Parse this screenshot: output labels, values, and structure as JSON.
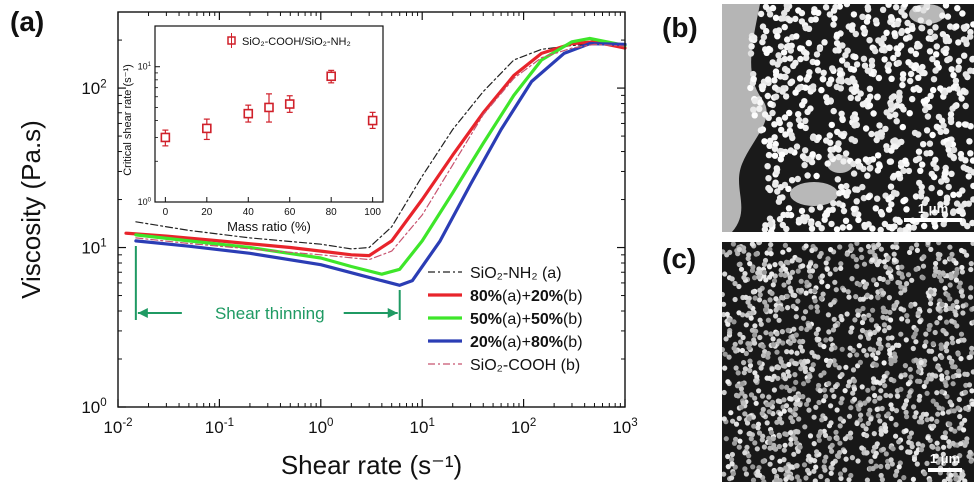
{
  "panels": {
    "a": "(a)",
    "b": "(b)",
    "c": "(c)"
  },
  "colors": {
    "nh2": "#222222",
    "s80": "#e8242b",
    "s50": "#3ee62a",
    "s20": "#2b3db5",
    "cooh": "#c8536f",
    "annotation": "#1f9a63",
    "inset_marker": "#d0202a"
  },
  "chart_data": [
    {
      "type": "line",
      "xlabel": "Shear rate (s⁻¹)",
      "ylabel": "Viscosity (Pa.s)",
      "xscale": "log",
      "yscale": "log",
      "xlim": [
        0.01,
        1000
      ],
      "ylim": [
        1,
        300
      ],
      "x_ticks": [
        0.01,
        0.1,
        1,
        10,
        100,
        1000
      ],
      "x_tick_labels": [
        {
          "base": "10",
          "exp": "-2"
        },
        {
          "base": "10",
          "exp": "-1"
        },
        {
          "base": "10",
          "exp": "0"
        },
        {
          "base": "10",
          "exp": "1"
        },
        {
          "base": "10",
          "exp": "2"
        },
        {
          "base": "10",
          "exp": "3"
        }
      ],
      "y_ticks": [
        1,
        10,
        100
      ],
      "y_tick_labels": [
        {
          "base": "10",
          "exp": "0"
        },
        {
          "base": "10",
          "exp": "1"
        },
        {
          "base": "10",
          "exp": "2"
        }
      ],
      "legend_position": "bottom-right",
      "annotation": {
        "text": "Shear thinning",
        "x_range": [
          0.015,
          6
        ]
      },
      "series": [
        {
          "name": "SiO₂-NH₂ (a)",
          "legend_bold": "",
          "legend_rest": "SiO₂-NH₂ (a)",
          "style": "dashdot",
          "color_key": "nh2",
          "points": [
            [
              0.015,
              14.5
            ],
            [
              0.05,
              12.8
            ],
            [
              0.2,
              11.5
            ],
            [
              1,
              10.5
            ],
            [
              2,
              9.8
            ],
            [
              3,
              10.0
            ],
            [
              5,
              13.5
            ],
            [
              10,
              28
            ],
            [
              20,
              55
            ],
            [
              40,
              95
            ],
            [
              80,
              150
            ],
            [
              150,
              175
            ],
            [
              300,
              185
            ],
            [
              500,
              190
            ],
            [
              1000,
              185
            ]
          ]
        },
        {
          "name": "80%(a)+20%(b)",
          "legend_bold": "80%",
          "legend_rest": "(a)+20%(b)",
          "style": "solid",
          "color_key": "s80",
          "points": [
            [
              0.012,
              12.3
            ],
            [
              0.03,
              11.8
            ],
            [
              0.1,
              11.0
            ],
            [
              0.5,
              10.0
            ],
            [
              1,
              9.5
            ],
            [
              2,
              9.0
            ],
            [
              3,
              8.9
            ],
            [
              5,
              11
            ],
            [
              10,
              20
            ],
            [
              20,
              38
            ],
            [
              40,
              70
            ],
            [
              80,
              120
            ],
            [
              150,
              165
            ],
            [
              300,
              190
            ],
            [
              500,
              195
            ],
            [
              1000,
              178
            ]
          ]
        },
        {
          "name": "50%(a)+50%(b)",
          "legend_bold": "50%",
          "legend_rest": "(a)+50%(b)",
          "style": "solid",
          "color_key": "s50",
          "points": [
            [
              0.015,
              12.0
            ],
            [
              0.05,
              11.0
            ],
            [
              0.2,
              10.0
            ],
            [
              1,
              8.6
            ],
            [
              2,
              7.6
            ],
            [
              4,
              6.8
            ],
            [
              6,
              7.3
            ],
            [
              10,
              11
            ],
            [
              20,
              22
            ],
            [
              40,
              45
            ],
            [
              80,
              90
            ],
            [
              150,
              150
            ],
            [
              300,
              195
            ],
            [
              450,
              205
            ],
            [
              1000,
              185
            ]
          ]
        },
        {
          "name": "20%(a)+80%(b)",
          "legend_bold": "20%",
          "legend_rest": "(a)+80%(b)",
          "style": "solid",
          "color_key": "s20",
          "points": [
            [
              0.015,
              11.0
            ],
            [
              0.05,
              10.2
            ],
            [
              0.2,
              9.2
            ],
            [
              1,
              7.8
            ],
            [
              3,
              6.5
            ],
            [
              6,
              5.8
            ],
            [
              8,
              6.2
            ],
            [
              15,
              11
            ],
            [
              30,
              25
            ],
            [
              60,
              55
            ],
            [
              120,
              110
            ],
            [
              250,
              165
            ],
            [
              450,
              190
            ],
            [
              1000,
              188
            ]
          ]
        },
        {
          "name": "SiO₂-COOH (b)",
          "legend_bold": "",
          "legend_rest": "SiO₂-COOH (b)",
          "style": "dashdot",
          "color_key": "cooh",
          "points": [
            [
              0.015,
              11.5
            ],
            [
              0.05,
              10.6
            ],
            [
              0.2,
              9.8
            ],
            [
              1,
              9.0
            ],
            [
              3,
              8.4
            ],
            [
              5,
              9.5
            ],
            [
              10,
              16
            ],
            [
              20,
              33
            ],
            [
              40,
              68
            ],
            [
              80,
              115
            ],
            [
              150,
              155
            ],
            [
              300,
              178
            ],
            [
              500,
              188
            ],
            [
              1000,
              183
            ]
          ]
        }
      ]
    },
    {
      "type": "scatter",
      "xlabel": "Mass ratio (%)",
      "ylabel": "Critical shear rate (s⁻¹)",
      "yscale": "log",
      "xlim": [
        -5,
        105
      ],
      "ylim": [
        1,
        20
      ],
      "x_ticks": [
        0,
        20,
        40,
        60,
        80,
        100
      ],
      "y_ticks": [
        1,
        10
      ],
      "y_tick_labels": [
        {
          "base": "10",
          "exp": "0"
        },
        {
          "base": "10",
          "exp": "1"
        }
      ],
      "legend_position": "top",
      "series": [
        {
          "name": "SiO₂-COOH/SiO₂-NH₂",
          "marker": "open-square",
          "x": [
            0,
            20,
            40,
            50,
            60,
            80,
            100
          ],
          "y": [
            3.0,
            3.5,
            4.5,
            5.0,
            5.3,
            8.5,
            4.0
          ],
          "err_low": [
            2.6,
            2.9,
            3.9,
            3.9,
            4.6,
            7.6,
            3.5
          ],
          "err_high": [
            3.4,
            4.1,
            5.2,
            6.3,
            6.1,
            9.4,
            4.6
          ]
        }
      ]
    }
  ],
  "micrographs": [
    {
      "scale_bar": "1 μm"
    },
    {
      "scale_bar": "1 μm"
    }
  ]
}
